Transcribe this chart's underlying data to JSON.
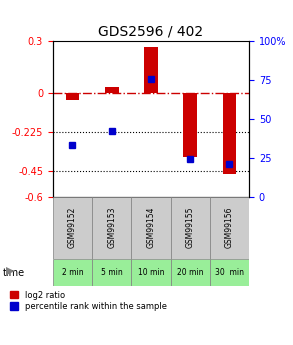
{
  "title": "GDS2596 / 402",
  "samples": [
    "GSM99152",
    "GSM99153",
    "GSM99154",
    "GSM99155",
    "GSM99156"
  ],
  "time_labels": [
    "2 min",
    "5 min",
    "10 min",
    "20 min",
    "30  min"
  ],
  "log2_ratio": [
    -0.04,
    0.035,
    0.27,
    -0.37,
    -0.47
  ],
  "percentile_rank": [
    0.33,
    0.42,
    0.76,
    0.24,
    0.21
  ],
  "ylim_left": [
    -0.6,
    0.3
  ],
  "ylim_right": [
    0,
    1.0
  ],
  "yticks_left": [
    0.3,
    0,
    -0.225,
    -0.45,
    -0.6
  ],
  "yticks_right": [
    1.0,
    0.75,
    0.5,
    0.25,
    0.0
  ],
  "ytick_labels_left": [
    "0.3",
    "0",
    "-0.225",
    "-0.45",
    "-0.6"
  ],
  "ytick_labels_right": [
    "100%",
    "75",
    "50",
    "25",
    "0"
  ],
  "bar_color": "#cc0000",
  "dot_color": "#0000cc",
  "hline_color": "#cc0000",
  "grid_color": "#000000",
  "bg_plot": "#ffffff",
  "bg_samples": "#cccccc",
  "bg_time": "#99ee99",
  "legend_log2": "log2 ratio",
  "legend_pct": "percentile rank within the sample",
  "bar_width": 0.35
}
